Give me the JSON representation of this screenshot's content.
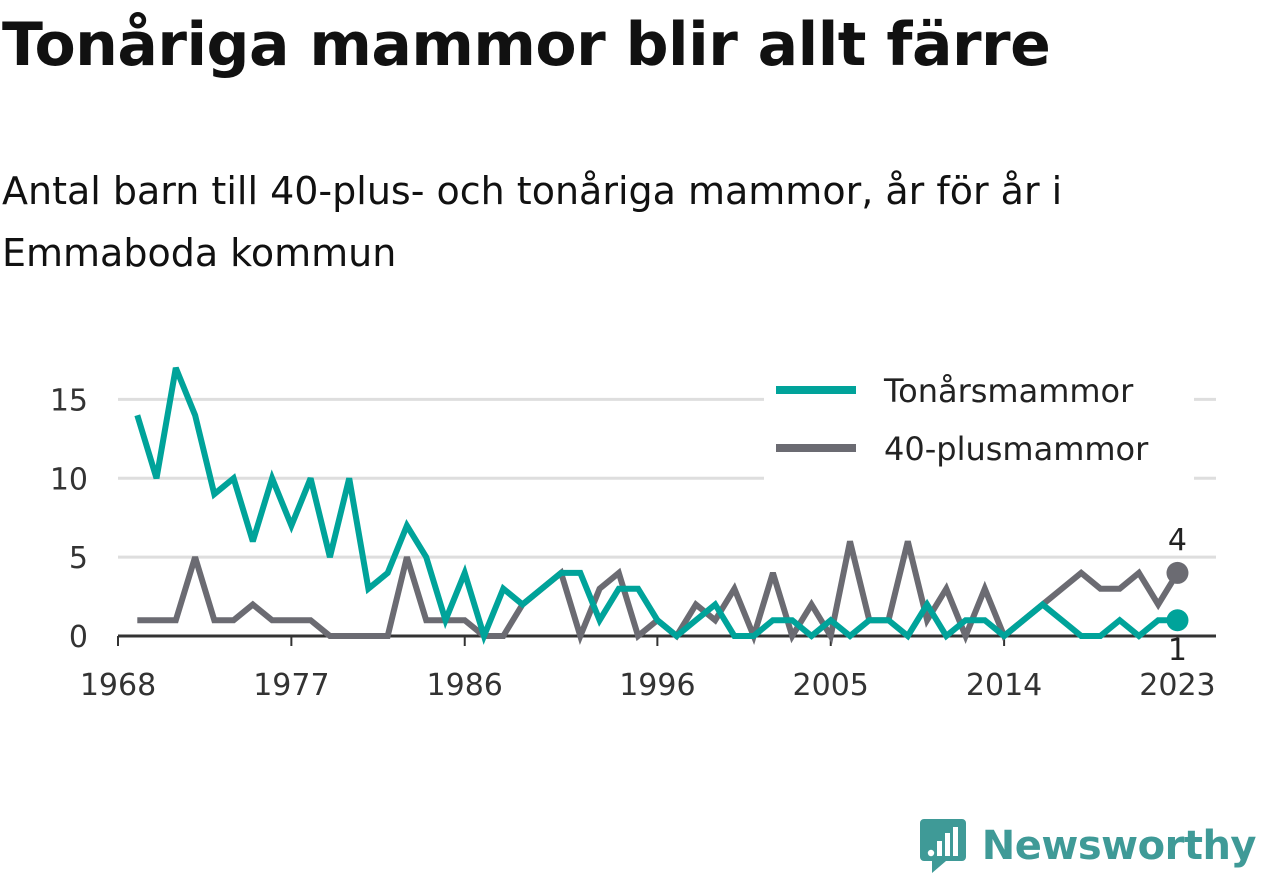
{
  "header": {
    "title": "Tonåriga mammor blir allt färre",
    "subtitle": "Antal barn till 40-plus- och tonåriga mammor, år för år i Emmaboda kommun"
  },
  "brand": {
    "name": "Newsworthy",
    "icon": "newsworthy-logo-icon",
    "color": "#3f9a97"
  },
  "chart_data": {
    "type": "line",
    "x": [
      1969,
      1970,
      1971,
      1972,
      1973,
      1974,
      1975,
      1976,
      1977,
      1978,
      1979,
      1980,
      1981,
      1982,
      1983,
      1984,
      1985,
      1986,
      1987,
      1988,
      1989,
      1990,
      1991,
      1992,
      1993,
      1994,
      1995,
      1996,
      1997,
      1998,
      1999,
      2000,
      2001,
      2002,
      2003,
      2004,
      2005,
      2006,
      2007,
      2008,
      2009,
      2010,
      2011,
      2012,
      2013,
      2014,
      2015,
      2016,
      2017,
      2018,
      2019,
      2020,
      2021,
      2022,
      2023
    ],
    "series": [
      {
        "name": "Tonårsmammor",
        "color": "#00a39a",
        "values": [
          14,
          10,
          17,
          14,
          9,
          10,
          6,
          10,
          7,
          10,
          5,
          10,
          3,
          4,
          7,
          5,
          1,
          4,
          0,
          3,
          2,
          3,
          4,
          4,
          1,
          3,
          3,
          1,
          0,
          1,
          2,
          0,
          0,
          1,
          1,
          0,
          1,
          0,
          1,
          1,
          0,
          2,
          0,
          1,
          1,
          0,
          1,
          2,
          1,
          0,
          0,
          1,
          0,
          1,
          1
        ]
      },
      {
        "name": "40-plusmammor",
        "color": "#6b6b72",
        "values": [
          1,
          1,
          1,
          5,
          1,
          1,
          2,
          1,
          1,
          1,
          0,
          0,
          0,
          0,
          5,
          1,
          1,
          1,
          0,
          0,
          2,
          3,
          4,
          0,
          3,
          4,
          0,
          1,
          0,
          2,
          1,
          3,
          0,
          4,
          0,
          2,
          0,
          6,
          1,
          1,
          6,
          1,
          3,
          0,
          3,
          0,
          1,
          2,
          3,
          4,
          3,
          3,
          4,
          2,
          4
        ]
      }
    ],
    "x_ticks": [
      1968,
      1977,
      1986,
      1996,
      2005,
      2014,
      2023
    ],
    "y_ticks": [
      0,
      5,
      10,
      15
    ],
    "ylim": [
      0,
      17.5
    ],
    "xlim": [
      1968,
      2025
    ],
    "grid": "horizontal",
    "legend_position": "top-right",
    "end_labels": [
      {
        "series": "40-plusmammor",
        "value": "4"
      },
      {
        "series": "Tonårsmammor",
        "value": "1"
      }
    ]
  }
}
